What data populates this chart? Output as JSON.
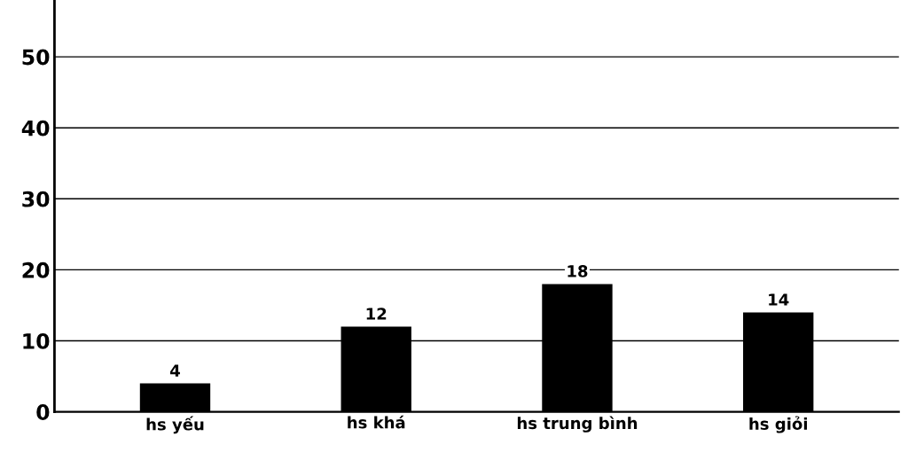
{
  "chart_data": {
    "type": "bar",
    "categories": [
      "hs yếu",
      "hs khá",
      "hs trung bình",
      "hs giỏi"
    ],
    "values": [
      4,
      12,
      18,
      14
    ],
    "color": "#000000",
    "ylim": [
      0,
      58
    ],
    "yticks": [
      0,
      10,
      20,
      30,
      40,
      50
    ],
    "grid": "y",
    "data_labels": true
  }
}
